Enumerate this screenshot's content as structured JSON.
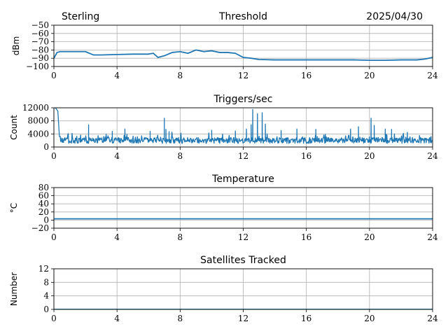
{
  "header": {
    "station": "Sterling",
    "date": "2025/04/30"
  },
  "colors": {
    "series": "#1f77b4",
    "grid": "#b0b0b0",
    "axis": "#000000"
  },
  "chart_data": [
    {
      "type": "line",
      "title": "Threshold",
      "xlabel": "",
      "ylabel": "dBm",
      "xlim": [
        0,
        24
      ],
      "ylim": [
        -100,
        -50
      ],
      "xticks": [
        0,
        4,
        8,
        12,
        16,
        20,
        24
      ],
      "yticks": [
        -100,
        -90,
        -80,
        -70,
        -60,
        -50
      ],
      "ytick_labels": [
        "−100",
        "−90",
        "−80",
        "−70",
        "−60",
        "−50"
      ],
      "grid": true,
      "series": [
        {
          "x": [
            0,
            0.2,
            0.4,
            1.0,
            2.0,
            2.5,
            3.0,
            4.0,
            5.0,
            6.0,
            6.3,
            6.6,
            7.0,
            7.5,
            8.0,
            8.5,
            9.0,
            9.5,
            10.0,
            10.5,
            11.0,
            11.5,
            12.0,
            12.5,
            13.0,
            14.0,
            15.0,
            16.0,
            17.0,
            18.0,
            19.0,
            20.0,
            21.0,
            22.0,
            23.0,
            23.5,
            24.0
          ],
          "y": [
            -90,
            -83,
            -82,
            -82,
            -82,
            -86,
            -86,
            -85.5,
            -85,
            -85,
            -84,
            -89,
            -87,
            -83,
            -82,
            -84,
            -80,
            -82,
            -81,
            -83,
            -83,
            -84,
            -89,
            -90,
            -91.5,
            -92,
            -92,
            -92,
            -92,
            -92,
            -92,
            -92.5,
            -92.5,
            -92,
            -92,
            -91,
            -89
          ]
        }
      ]
    },
    {
      "type": "line",
      "title": "Triggers/sec",
      "xlabel": "",
      "ylabel": "Count",
      "xlim": [
        0,
        24
      ],
      "ylim": [
        0,
        12000
      ],
      "xticks": [
        0,
        4,
        8,
        12,
        16,
        20,
        24
      ],
      "yticks": [
        0,
        4000,
        8000,
        12000
      ],
      "ytick_labels": [
        "0",
        "4000",
        "8000",
        "12000"
      ],
      "grid": true,
      "series": [
        {
          "base": 2000,
          "x": [
            0,
            0.1,
            0.25,
            0.35,
            2.2,
            3.7,
            4.5,
            6.1,
            7.0,
            7.1,
            7.3,
            10.0,
            11.5,
            12.2,
            12.5,
            12.6,
            12.9,
            13.2,
            13.4,
            14.4,
            15.4,
            16.6,
            18.8,
            19.3,
            20.1,
            20.3,
            21.0,
            21.4,
            22.4,
            23.9
          ],
          "y": [
            12000,
            12000,
            11000,
            3200,
            6800,
            4800,
            5500,
            4800,
            8800,
            5400,
            4700,
            5100,
            4900,
            5500,
            6800,
            11500,
            10200,
            10500,
            7000,
            5000,
            5500,
            5400,
            5500,
            6200,
            8800,
            6600,
            5500,
            5400,
            4500,
            3200
          ]
        }
      ]
    },
    {
      "type": "line",
      "title": "Temperature",
      "xlabel": "",
      "ylabel": "°C",
      "xlim": [
        0,
        24
      ],
      "ylim": [
        -20,
        80
      ],
      "xticks": [
        0,
        4,
        8,
        12,
        16,
        20,
        24
      ],
      "yticks": [
        -20,
        0,
        20,
        40,
        60,
        80
      ],
      "ytick_labels": [
        "−20",
        "0",
        "20",
        "40",
        "60",
        "80"
      ],
      "grid": true,
      "series": [
        {
          "x": [
            0,
            24
          ],
          "y": [
            3,
            3
          ]
        }
      ]
    },
    {
      "type": "line",
      "title": "Satellites Tracked",
      "xlabel": "",
      "ylabel": "Number",
      "xlim": [
        0,
        24
      ],
      "ylim": [
        0,
        12
      ],
      "xticks": [
        0,
        4,
        8,
        12,
        16,
        20,
        24
      ],
      "yticks": [
        0,
        4,
        8,
        12
      ],
      "ytick_labels": [
        "0",
        "4",
        "8",
        "12"
      ],
      "grid": true,
      "series": [
        {
          "x": [
            0,
            24
          ],
          "y": [
            0,
            0
          ]
        }
      ]
    }
  ]
}
